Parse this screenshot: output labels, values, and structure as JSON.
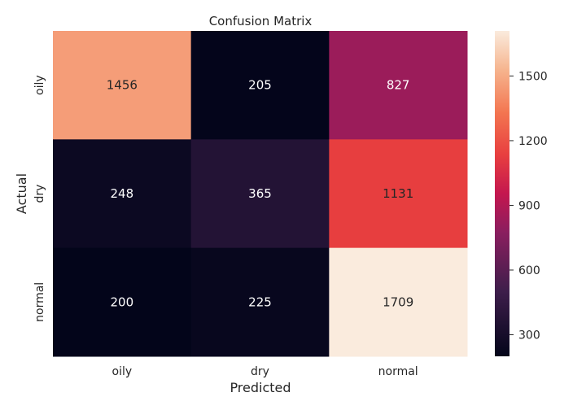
{
  "chart_data": {
    "type": "heatmap",
    "title": "Confusion Matrix",
    "xlabel": "Predicted",
    "ylabel": "Actual",
    "x_categories": [
      "oily",
      "dry",
      "normal"
    ],
    "y_categories": [
      "oily",
      "dry",
      "normal"
    ],
    "values": [
      [
        1456,
        205,
        827
      ],
      [
        248,
        365,
        1131
      ],
      [
        200,
        225,
        1709
      ]
    ],
    "colorbar": {
      "colormap": "rocket",
      "range": [
        200,
        1709
      ],
      "ticks": [
        300,
        600,
        900,
        1200,
        1500
      ],
      "tick_labels": [
        "300",
        "600",
        "900",
        "1200",
        "1500"
      ]
    },
    "grid": false
  }
}
